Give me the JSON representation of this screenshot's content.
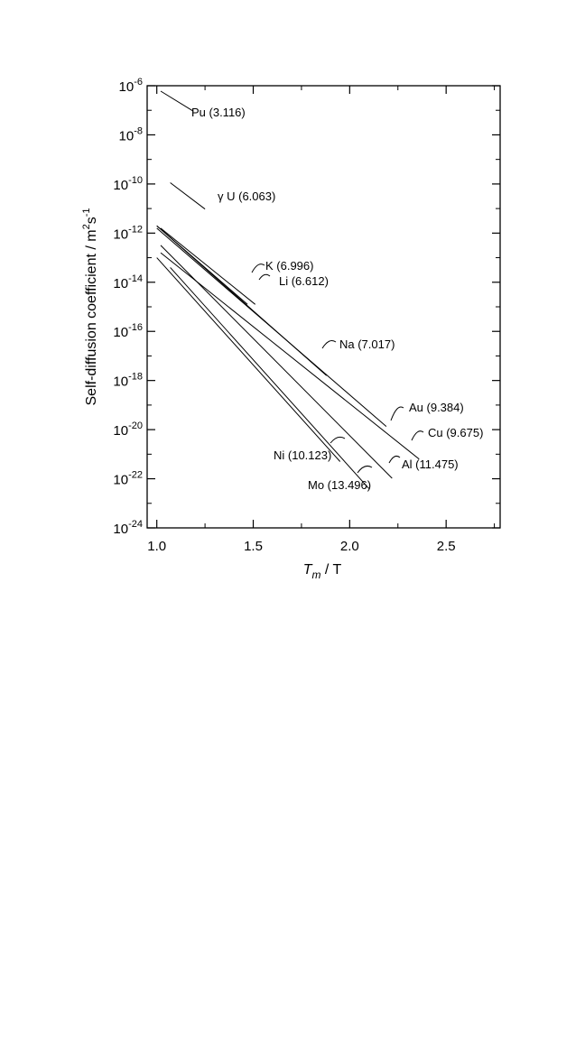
{
  "chart_data": {
    "type": "line",
    "xlabel": {
      "main": "T",
      "sub": "m",
      "rest": " / T"
    },
    "ylabel": {
      "main": "Self-diffusion coefficient / m",
      "sup1": "2",
      "mid": "s",
      "sup2": "-1"
    },
    "xlim": [
      0.95,
      2.78
    ],
    "ylim": [
      -24,
      -6
    ],
    "y_scale": "log10",
    "x_ticks": [
      1.0,
      1.5,
      2.0,
      2.5
    ],
    "x_tick_labels": [
      "1.0",
      "1.5",
      "2.0",
      "2.5"
    ],
    "y_ticks": [
      -6,
      -8,
      -10,
      -12,
      -14,
      -16,
      -18,
      -20,
      -22,
      -24
    ],
    "y_tick_labels": [
      {
        "base": "10",
        "exp": "-6"
      },
      {
        "base": "10",
        "exp": "-8"
      },
      {
        "base": "10",
        "exp": "-10"
      },
      {
        "base": "10",
        "exp": "-12"
      },
      {
        "base": "10",
        "exp": "-14"
      },
      {
        "base": "10",
        "exp": "-16"
      },
      {
        "base": "10",
        "exp": "-18"
      },
      {
        "base": "10",
        "exp": "-20"
      },
      {
        "base": "10",
        "exp": "-22"
      },
      {
        "base": "10",
        "exp": "-24"
      }
    ],
    "grid": false,
    "series": [
      {
        "name": "Pu (3.116)",
        "x": [
          1.02,
          1.19
        ],
        "y": [
          -6.22,
          -7.04
        ]
      },
      {
        "name": "γ U (6.063)",
        "x": [
          1.07,
          1.25
        ],
        "y": [
          -9.95,
          -11.02
        ]
      },
      {
        "name": "K (6.996)",
        "x": [
          1.0,
          1.47
        ],
        "y": [
          -11.7,
          -14.9
        ]
      },
      {
        "name": "Li (6.612)",
        "x": [
          1.02,
          1.51
        ],
        "y": [
          -11.8,
          -14.9
        ]
      },
      {
        "name": "Na (7.017)",
        "x": [
          1.0,
          1.88
        ],
        "y": [
          -11.7,
          -17.8
        ]
      },
      {
        "name": "Au (9.384)",
        "x": [
          1.0,
          2.19
        ],
        "y": [
          -11.8,
          -19.87
        ]
      },
      {
        "name": "Cu (9.675)",
        "x": [
          1.02,
          2.36
        ],
        "y": [
          -12.8,
          -21.2
        ]
      },
      {
        "name": "Ni (10.123)",
        "x": [
          1.0,
          1.95
        ],
        "y": [
          -13.0,
          -21.3
        ]
      },
      {
        "name": "Al (11.475)",
        "x": [
          1.02,
          2.22
        ],
        "y": [
          -12.5,
          -21.98
        ]
      },
      {
        "name": "Mo (13.496)",
        "x": [
          1.07,
          2.1
        ],
        "y": [
          -13.4,
          -22.4
        ]
      }
    ]
  }
}
